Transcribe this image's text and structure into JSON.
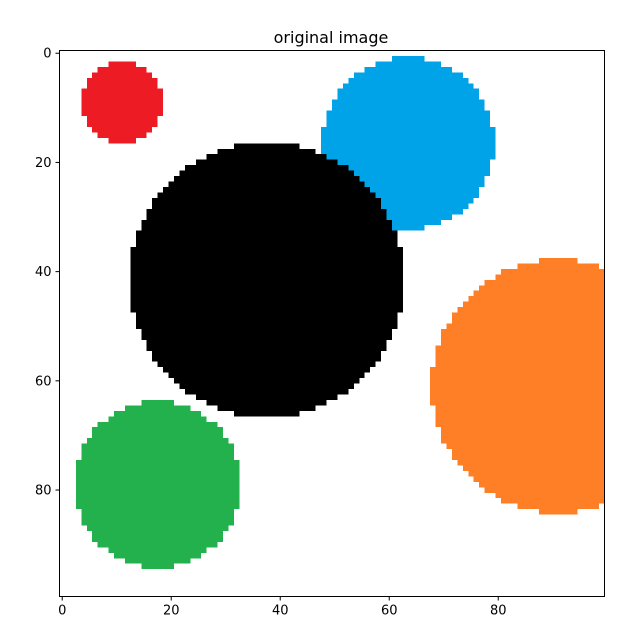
{
  "chart_data": {
    "type": "image",
    "title": "original image",
    "xlabel": "",
    "ylabel": "",
    "xlim": [
      -0.5,
      99.5
    ],
    "ylim": [
      99.5,
      -0.5
    ],
    "xticks": [
      0,
      20,
      40,
      60,
      80
    ],
    "yticks": [
      0,
      20,
      40,
      60,
      80
    ],
    "background": "#ffffff",
    "series": [
      {
        "color": "#ed1c24",
        "center": [
          11,
          9
        ],
        "radius": 7.3
      },
      {
        "color": "#00a2e8",
        "center": [
          63.5,
          16.5
        ],
        "radius": 15.8
      },
      {
        "color": "#000000",
        "center": [
          37.5,
          41.5
        ],
        "radius": 25.2
      },
      {
        "color": "#ff7f27",
        "center": [
          91,
          61
        ],
        "radius": 23.3
      },
      {
        "color": "#22b14c",
        "center": [
          17.5,
          79
        ],
        "radius": 15.3
      }
    ]
  }
}
